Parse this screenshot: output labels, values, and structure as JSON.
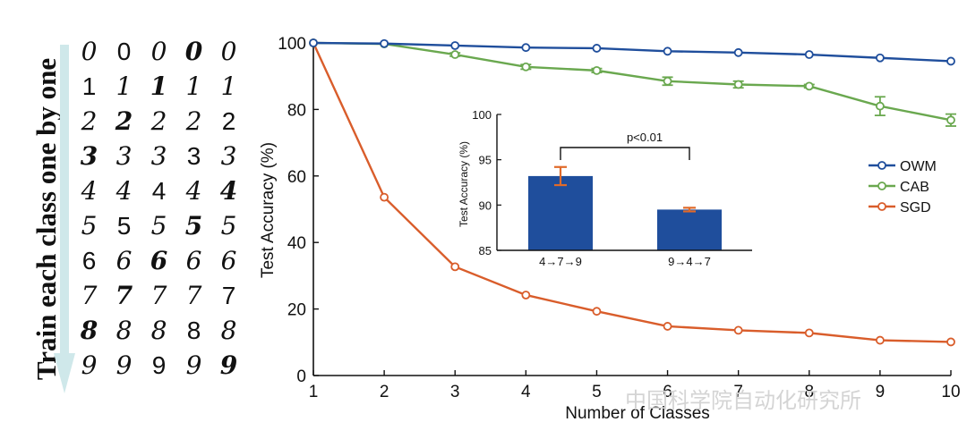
{
  "figure": {
    "side_title": "Train each class one by one",
    "digit_rows": [
      [
        "0",
        "0",
        "0",
        "0",
        "0"
      ],
      [
        "1",
        "1",
        "1",
        "1",
        "1"
      ],
      [
        "2",
        "2",
        "2",
        "2",
        "2"
      ],
      [
        "3",
        "3",
        "3",
        "3",
        "3"
      ],
      [
        "4",
        "4",
        "4",
        "4",
        "4"
      ],
      [
        "5",
        "5",
        "5",
        "5",
        "5"
      ],
      [
        "6",
        "6",
        "6",
        "6",
        "6"
      ],
      [
        "7",
        "7",
        "7",
        "7",
        "7"
      ],
      [
        "8",
        "8",
        "8",
        "8",
        "8"
      ],
      [
        "9",
        "9",
        "9",
        "9",
        "9"
      ]
    ],
    "watermark": "中国科学院自动化研究所"
  },
  "colors": {
    "OWM": "#1f4e9c",
    "CAB": "#6aa84f",
    "SGD": "#d95d2b",
    "bar": "#1f4e9c",
    "errorbar": "#e06a2a",
    "arrow": "#cfe8ea",
    "axis": "#111111"
  },
  "chart_data": [
    {
      "type": "line",
      "xlabel": "Number of Classes",
      "ylabel": "Test Accuracy (%)",
      "xlim": [
        1,
        10
      ],
      "ylim": [
        0,
        100
      ],
      "x": [
        1,
        2,
        3,
        4,
        5,
        6,
        7,
        8,
        9,
        10
      ],
      "xticks": [
        "1",
        "2",
        "3",
        "4",
        "5",
        "6",
        "7",
        "8",
        "9",
        "10"
      ],
      "yticks": [
        "0",
        "20",
        "40",
        "60",
        "80",
        "100"
      ],
      "legend_position": "right",
      "series": [
        {
          "name": "OWM",
          "values": [
            100,
            99.8,
            99.2,
            98.6,
            98.4,
            97.5,
            97.1,
            96.5,
            95.5,
            94.5
          ],
          "errors": [
            0,
            0,
            0,
            0,
            0,
            0,
            0,
            0,
            0,
            0
          ]
        },
        {
          "name": "CAB",
          "values": [
            100,
            99.7,
            96.5,
            92.8,
            91.7,
            88.5,
            87.5,
            87.0,
            81.0,
            76.8
          ],
          "errors": [
            0,
            0,
            0.5,
            0.7,
            0.6,
            1.2,
            1.0,
            0.5,
            2.8,
            1.8
          ]
        },
        {
          "name": "SGD",
          "values": [
            100,
            53.6,
            32.7,
            24.2,
            19.3,
            14.8,
            13.6,
            12.8,
            10.6,
            10.1
          ],
          "errors": [
            0,
            0,
            0,
            0,
            0,
            0,
            0,
            0,
            0,
            0
          ]
        }
      ]
    },
    {
      "type": "bar",
      "inset": true,
      "ylabel": "Test  Accuracy (%)",
      "categories": [
        "4→7→9",
        "9→4→7"
      ],
      "values": [
        93.2,
        89.5
      ],
      "errors": [
        1.0,
        0.2
      ],
      "ylim": [
        85,
        100
      ],
      "yticks": [
        "85",
        "90",
        "95",
        "100"
      ],
      "annotation": "p<0.01"
    }
  ]
}
